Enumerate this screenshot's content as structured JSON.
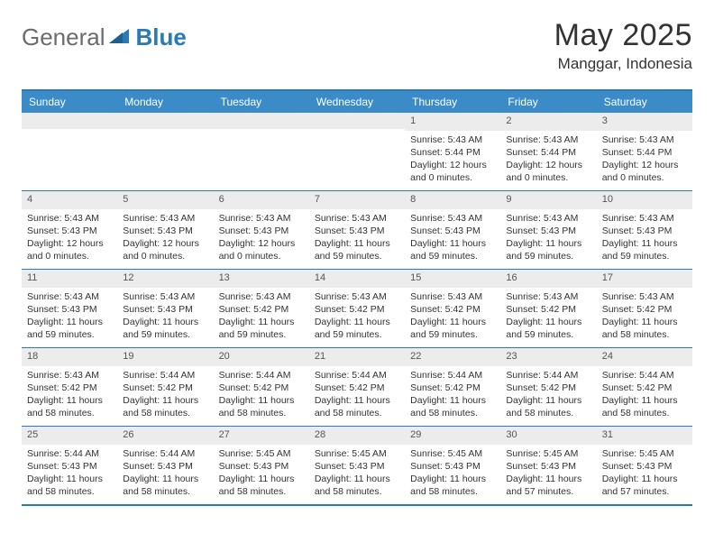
{
  "brand": {
    "part1": "General",
    "part2": "Blue"
  },
  "title": "May 2025",
  "location": "Manggar, Indonesia",
  "colors": {
    "header_bg": "#3a8bc8",
    "border": "#2a7ab8",
    "day_bar": "#ececec",
    "text": "#333333",
    "brand_gray": "#6b6b6b",
    "brand_blue": "#2a7ab8"
  },
  "weekdays": [
    "Sunday",
    "Monday",
    "Tuesday",
    "Wednesday",
    "Thursday",
    "Friday",
    "Saturday"
  ],
  "weeks": [
    [
      {
        "n": "",
        "sr": "",
        "ss": "",
        "dl": ""
      },
      {
        "n": "",
        "sr": "",
        "ss": "",
        "dl": ""
      },
      {
        "n": "",
        "sr": "",
        "ss": "",
        "dl": ""
      },
      {
        "n": "",
        "sr": "",
        "ss": "",
        "dl": ""
      },
      {
        "n": "1",
        "sr": "Sunrise: 5:43 AM",
        "ss": "Sunset: 5:44 PM",
        "dl": "Daylight: 12 hours and 0 minutes."
      },
      {
        "n": "2",
        "sr": "Sunrise: 5:43 AM",
        "ss": "Sunset: 5:44 PM",
        "dl": "Daylight: 12 hours and 0 minutes."
      },
      {
        "n": "3",
        "sr": "Sunrise: 5:43 AM",
        "ss": "Sunset: 5:44 PM",
        "dl": "Daylight: 12 hours and 0 minutes."
      }
    ],
    [
      {
        "n": "4",
        "sr": "Sunrise: 5:43 AM",
        "ss": "Sunset: 5:43 PM",
        "dl": "Daylight: 12 hours and 0 minutes."
      },
      {
        "n": "5",
        "sr": "Sunrise: 5:43 AM",
        "ss": "Sunset: 5:43 PM",
        "dl": "Daylight: 12 hours and 0 minutes."
      },
      {
        "n": "6",
        "sr": "Sunrise: 5:43 AM",
        "ss": "Sunset: 5:43 PM",
        "dl": "Daylight: 12 hours and 0 minutes."
      },
      {
        "n": "7",
        "sr": "Sunrise: 5:43 AM",
        "ss": "Sunset: 5:43 PM",
        "dl": "Daylight: 11 hours and 59 minutes."
      },
      {
        "n": "8",
        "sr": "Sunrise: 5:43 AM",
        "ss": "Sunset: 5:43 PM",
        "dl": "Daylight: 11 hours and 59 minutes."
      },
      {
        "n": "9",
        "sr": "Sunrise: 5:43 AM",
        "ss": "Sunset: 5:43 PM",
        "dl": "Daylight: 11 hours and 59 minutes."
      },
      {
        "n": "10",
        "sr": "Sunrise: 5:43 AM",
        "ss": "Sunset: 5:43 PM",
        "dl": "Daylight: 11 hours and 59 minutes."
      }
    ],
    [
      {
        "n": "11",
        "sr": "Sunrise: 5:43 AM",
        "ss": "Sunset: 5:43 PM",
        "dl": "Daylight: 11 hours and 59 minutes."
      },
      {
        "n": "12",
        "sr": "Sunrise: 5:43 AM",
        "ss": "Sunset: 5:43 PM",
        "dl": "Daylight: 11 hours and 59 minutes."
      },
      {
        "n": "13",
        "sr": "Sunrise: 5:43 AM",
        "ss": "Sunset: 5:42 PM",
        "dl": "Daylight: 11 hours and 59 minutes."
      },
      {
        "n": "14",
        "sr": "Sunrise: 5:43 AM",
        "ss": "Sunset: 5:42 PM",
        "dl": "Daylight: 11 hours and 59 minutes."
      },
      {
        "n": "15",
        "sr": "Sunrise: 5:43 AM",
        "ss": "Sunset: 5:42 PM",
        "dl": "Daylight: 11 hours and 59 minutes."
      },
      {
        "n": "16",
        "sr": "Sunrise: 5:43 AM",
        "ss": "Sunset: 5:42 PM",
        "dl": "Daylight: 11 hours and 59 minutes."
      },
      {
        "n": "17",
        "sr": "Sunrise: 5:43 AM",
        "ss": "Sunset: 5:42 PM",
        "dl": "Daylight: 11 hours and 58 minutes."
      }
    ],
    [
      {
        "n": "18",
        "sr": "Sunrise: 5:43 AM",
        "ss": "Sunset: 5:42 PM",
        "dl": "Daylight: 11 hours and 58 minutes."
      },
      {
        "n": "19",
        "sr": "Sunrise: 5:44 AM",
        "ss": "Sunset: 5:42 PM",
        "dl": "Daylight: 11 hours and 58 minutes."
      },
      {
        "n": "20",
        "sr": "Sunrise: 5:44 AM",
        "ss": "Sunset: 5:42 PM",
        "dl": "Daylight: 11 hours and 58 minutes."
      },
      {
        "n": "21",
        "sr": "Sunrise: 5:44 AM",
        "ss": "Sunset: 5:42 PM",
        "dl": "Daylight: 11 hours and 58 minutes."
      },
      {
        "n": "22",
        "sr": "Sunrise: 5:44 AM",
        "ss": "Sunset: 5:42 PM",
        "dl": "Daylight: 11 hours and 58 minutes."
      },
      {
        "n": "23",
        "sr": "Sunrise: 5:44 AM",
        "ss": "Sunset: 5:42 PM",
        "dl": "Daylight: 11 hours and 58 minutes."
      },
      {
        "n": "24",
        "sr": "Sunrise: 5:44 AM",
        "ss": "Sunset: 5:42 PM",
        "dl": "Daylight: 11 hours and 58 minutes."
      }
    ],
    [
      {
        "n": "25",
        "sr": "Sunrise: 5:44 AM",
        "ss": "Sunset: 5:43 PM",
        "dl": "Daylight: 11 hours and 58 minutes."
      },
      {
        "n": "26",
        "sr": "Sunrise: 5:44 AM",
        "ss": "Sunset: 5:43 PM",
        "dl": "Daylight: 11 hours and 58 minutes."
      },
      {
        "n": "27",
        "sr": "Sunrise: 5:45 AM",
        "ss": "Sunset: 5:43 PM",
        "dl": "Daylight: 11 hours and 58 minutes."
      },
      {
        "n": "28",
        "sr": "Sunrise: 5:45 AM",
        "ss": "Sunset: 5:43 PM",
        "dl": "Daylight: 11 hours and 58 minutes."
      },
      {
        "n": "29",
        "sr": "Sunrise: 5:45 AM",
        "ss": "Sunset: 5:43 PM",
        "dl": "Daylight: 11 hours and 58 minutes."
      },
      {
        "n": "30",
        "sr": "Sunrise: 5:45 AM",
        "ss": "Sunset: 5:43 PM",
        "dl": "Daylight: 11 hours and 57 minutes."
      },
      {
        "n": "31",
        "sr": "Sunrise: 5:45 AM",
        "ss": "Sunset: 5:43 PM",
        "dl": "Daylight: 11 hours and 57 minutes."
      }
    ]
  ]
}
